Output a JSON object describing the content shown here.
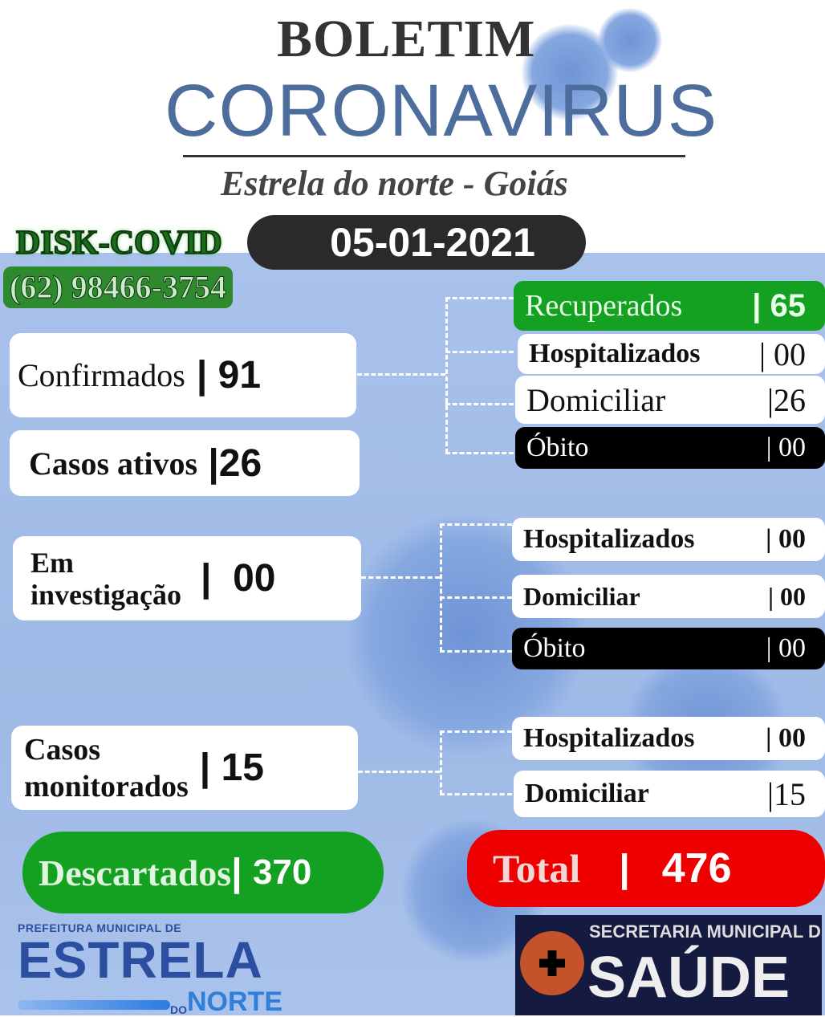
{
  "header": {
    "title_line1": "BOLETIM",
    "title_line2": "CORONAVIRUS",
    "location": "Estrela do norte - Goiás",
    "date": "05-01-2021"
  },
  "hotline": {
    "label": "DISK-COVID",
    "phone": "(62) 98466-3754"
  },
  "confirmados": {
    "label": "Confirmados",
    "value": "91"
  },
  "casos_ativos": {
    "label": "Casos ativos",
    "value": "26"
  },
  "confirmados_breakdown": [
    {
      "label": "Recuperados",
      "value": "65"
    },
    {
      "label": "Hospitalizados",
      "value": "00"
    },
    {
      "label": "Domiciliar",
      "value": "26"
    },
    {
      "label": "Óbito",
      "value": "00"
    }
  ],
  "em_investigacao": {
    "label_line1": "Em",
    "label_line2": "investigação",
    "value": "00"
  },
  "investigacao_breakdown": [
    {
      "label": "Hospitalizados",
      "value": "00"
    },
    {
      "label": "Domiciliar",
      "value": "00"
    },
    {
      "label": "Óbito",
      "value": "00"
    }
  ],
  "monitorados": {
    "label_line1": "Casos",
    "label_line2": "monitorados",
    "value": "15"
  },
  "monitorados_breakdown": [
    {
      "label": "Hospitalizados",
      "value": "00"
    },
    {
      "label": "Domiciliar",
      "value": "15"
    }
  ],
  "descartados": {
    "label": "Descartados",
    "value": "370"
  },
  "total": {
    "label": "Total",
    "value": "476"
  },
  "logos": {
    "left_line1": "PREFEITURA MUNICIPAL DE",
    "left_line2": "ESTRELA",
    "left_line3_small": "DO",
    "left_line3": "NORTE",
    "right_line1": "SECRETARIA MUNICIPAL DE",
    "right_line2": "SAÚDE"
  },
  "colors": {
    "green": "#14a020",
    "red": "#ee0000",
    "dark": "#000000",
    "title_blue": "#4d6d9c",
    "background_blue": "#a8c2ec"
  }
}
